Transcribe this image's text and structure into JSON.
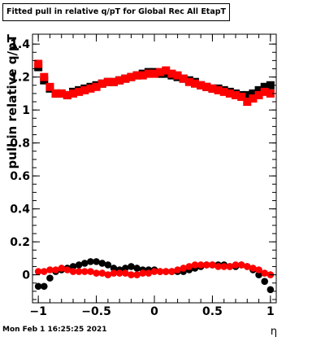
{
  "chart_data": {
    "type": "scatter",
    "title": "Fitted pull in relative q/pT  for Global Rec All EtapT",
    "xlabel": "η",
    "ylabel": "pull in relative q/pT",
    "xlim": [
      -1.05,
      1.05
    ],
    "ylim": [
      -0.17,
      1.46
    ],
    "xticks": [
      -1,
      -0.5,
      0,
      0.5,
      1
    ],
    "yticks": [
      0,
      0.2,
      0.4,
      0.6,
      0.8,
      1,
      1.2,
      1.4
    ],
    "xtick_labels": [
      "−1",
      "−0.5",
      "0",
      "0.5",
      "1"
    ],
    "ytick_labels": [
      "0",
      "0.2",
      "0.4",
      "0.6",
      "0.8",
      "1",
      "1.2",
      "1.4"
    ],
    "grid": false,
    "x": [
      -1.0,
      -0.95,
      -0.9,
      -0.85,
      -0.8,
      -0.75,
      -0.7,
      -0.65,
      -0.6,
      -0.55,
      -0.5,
      -0.45,
      -0.4,
      -0.35,
      -0.3,
      -0.25,
      -0.2,
      -0.15,
      -0.1,
      -0.05,
      0.0,
      0.05,
      0.1,
      0.15,
      0.2,
      0.25,
      0.3,
      0.35,
      0.4,
      0.45,
      0.5,
      0.55,
      0.6,
      0.65,
      0.7,
      0.75,
      0.8,
      0.85,
      0.9,
      0.95,
      1.0
    ],
    "series": [
      {
        "marker": "square",
        "color": "#000000",
        "values": [
          1.26,
          1.18,
          1.13,
          1.1,
          1.1,
          1.09,
          1.11,
          1.12,
          1.13,
          1.14,
          1.15,
          1.16,
          1.17,
          1.17,
          1.18,
          1.19,
          1.2,
          1.21,
          1.22,
          1.23,
          1.23,
          1.22,
          1.22,
          1.21,
          1.2,
          1.19,
          1.18,
          1.17,
          1.15,
          1.14,
          1.13,
          1.13,
          1.12,
          1.11,
          1.1,
          1.09,
          1.09,
          1.1,
          1.12,
          1.14,
          1.15
        ]
      },
      {
        "marker": "square",
        "color": "#ff0000",
        "values": [
          1.28,
          1.2,
          1.14,
          1.1,
          1.1,
          1.09,
          1.1,
          1.11,
          1.12,
          1.13,
          1.14,
          1.16,
          1.17,
          1.17,
          1.18,
          1.19,
          1.2,
          1.21,
          1.21,
          1.22,
          1.22,
          1.23,
          1.24,
          1.22,
          1.21,
          1.19,
          1.17,
          1.16,
          1.15,
          1.14,
          1.13,
          1.12,
          1.11,
          1.1,
          1.09,
          1.08,
          1.05,
          1.07,
          1.09,
          1.11,
          1.1
        ]
      },
      {
        "marker": "circle",
        "color": "#000000",
        "values": [
          -0.07,
          -0.07,
          -0.02,
          0.02,
          0.03,
          0.04,
          0.05,
          0.06,
          0.07,
          0.08,
          0.08,
          0.07,
          0.06,
          0.04,
          0.03,
          0.04,
          0.05,
          0.04,
          0.03,
          0.03,
          0.03,
          0.02,
          0.02,
          0.02,
          0.02,
          0.02,
          0.03,
          0.04,
          0.05,
          0.06,
          0.06,
          0.06,
          0.06,
          0.05,
          0.05,
          0.06,
          0.05,
          0.03,
          0.0,
          -0.04,
          -0.09
        ]
      },
      {
        "marker": "circle",
        "color": "#ff0000",
        "values": [
          0.02,
          0.02,
          0.03,
          0.03,
          0.04,
          0.03,
          0.02,
          0.02,
          0.02,
          0.02,
          0.01,
          0.01,
          0.0,
          0.01,
          0.01,
          0.01,
          0.0,
          0.0,
          0.01,
          0.01,
          0.02,
          0.02,
          0.02,
          0.02,
          0.03,
          0.04,
          0.05,
          0.06,
          0.06,
          0.06,
          0.06,
          0.05,
          0.05,
          0.05,
          0.06,
          0.06,
          0.05,
          0.04,
          0.03,
          0.01,
          0.0
        ]
      }
    ]
  },
  "footer": {
    "timestamp": "Mon Feb  1 16:25:25 2021"
  }
}
